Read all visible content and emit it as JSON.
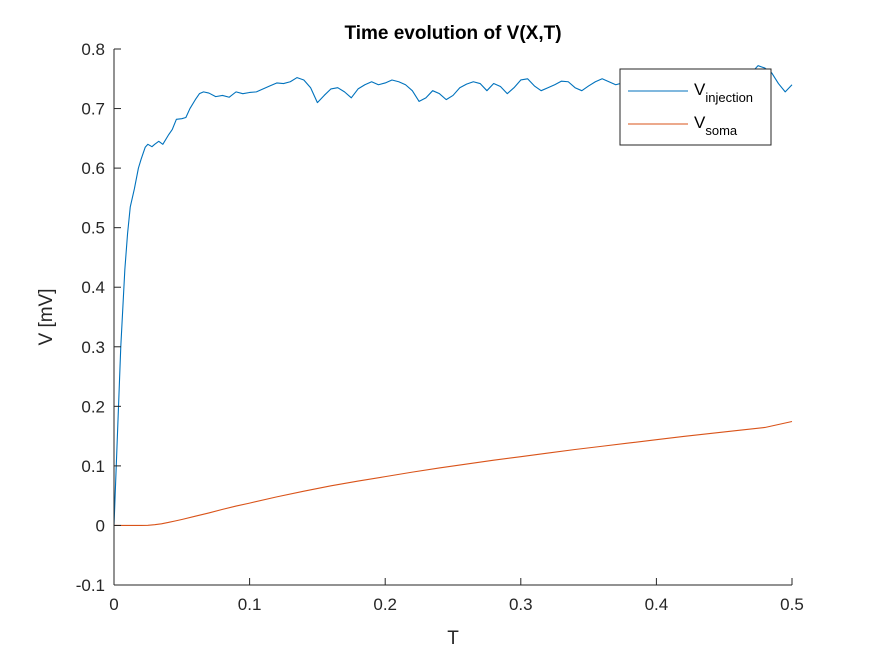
{
  "chart_data": {
    "type": "line",
    "title": "Time evolution of V(X,T)",
    "xlabel": "T",
    "ylabel": "V [mV]",
    "xlim": [
      0,
      0.5
    ],
    "ylim": [
      -0.1,
      0.8
    ],
    "xticks": [
      "0",
      "0.1",
      "0.2",
      "0.3",
      "0.4",
      "0.5"
    ],
    "yticks": [
      "-0.1",
      "0",
      "0.1",
      "0.2",
      "0.3",
      "0.4",
      "0.5",
      "0.6",
      "0.7",
      "0.8"
    ],
    "grid": false,
    "legend_position": "top-right",
    "series": [
      {
        "name": "V",
        "subscript": "injection",
        "color": "#0072BD",
        "x": [
          0,
          0.002,
          0.005,
          0.008,
          0.01,
          0.012,
          0.015,
          0.018,
          0.02,
          0.023,
          0.025,
          0.028,
          0.03,
          0.033,
          0.036,
          0.04,
          0.043,
          0.046,
          0.05,
          0.053,
          0.056,
          0.06,
          0.063,
          0.066,
          0.07,
          0.075,
          0.08,
          0.085,
          0.09,
          0.095,
          0.1,
          0.105,
          0.11,
          0.115,
          0.12,
          0.125,
          0.13,
          0.135,
          0.14,
          0.145,
          0.15,
          0.155,
          0.16,
          0.165,
          0.17,
          0.175,
          0.18,
          0.185,
          0.19,
          0.195,
          0.2,
          0.205,
          0.21,
          0.215,
          0.22,
          0.225,
          0.23,
          0.235,
          0.24,
          0.245,
          0.25,
          0.255,
          0.26,
          0.265,
          0.27,
          0.275,
          0.28,
          0.285,
          0.29,
          0.295,
          0.3,
          0.305,
          0.31,
          0.315,
          0.32,
          0.325,
          0.33,
          0.335,
          0.34,
          0.345,
          0.35,
          0.355,
          0.36,
          0.365,
          0.37,
          0.375,
          0.38,
          0.385,
          0.39,
          0.395,
          0.4,
          0.405,
          0.41,
          0.415,
          0.42,
          0.425,
          0.43,
          0.435,
          0.44,
          0.445,
          0.45,
          0.455,
          0.46,
          0.465,
          0.47,
          0.475,
          0.48,
          0.485,
          0.49,
          0.495,
          0.5
        ],
        "y": [
          0,
          0.12,
          0.3,
          0.43,
          0.49,
          0.535,
          0.565,
          0.6,
          0.615,
          0.635,
          0.64,
          0.636,
          0.64,
          0.645,
          0.64,
          0.655,
          0.665,
          0.682,
          0.683,
          0.685,
          0.7,
          0.715,
          0.725,
          0.728,
          0.726,
          0.72,
          0.722,
          0.719,
          0.728,
          0.725,
          0.727,
          0.728,
          0.733,
          0.738,
          0.743,
          0.742,
          0.745,
          0.752,
          0.748,
          0.735,
          0.71,
          0.722,
          0.733,
          0.735,
          0.728,
          0.718,
          0.733,
          0.74,
          0.745,
          0.74,
          0.743,
          0.748,
          0.745,
          0.74,
          0.73,
          0.712,
          0.718,
          0.73,
          0.725,
          0.715,
          0.722,
          0.735,
          0.741,
          0.745,
          0.742,
          0.73,
          0.742,
          0.737,
          0.725,
          0.735,
          0.748,
          0.75,
          0.738,
          0.73,
          0.735,
          0.74,
          0.746,
          0.745,
          0.735,
          0.73,
          0.738,
          0.745,
          0.75,
          0.745,
          0.74,
          0.743,
          0.748,
          0.752,
          0.745,
          0.738,
          0.744,
          0.748,
          0.742,
          0.735,
          0.745,
          0.755,
          0.75,
          0.746,
          0.742,
          0.745,
          0.748,
          0.752,
          0.745,
          0.742,
          0.76,
          0.772,
          0.768,
          0.76,
          0.742,
          0.728,
          0.74
        ]
      },
      {
        "name": "V",
        "subscript": "soma",
        "color": "#D95319",
        "x": [
          0,
          0.01,
          0.02,
          0.025,
          0.03,
          0.035,
          0.04,
          0.045,
          0.05,
          0.06,
          0.07,
          0.08,
          0.09,
          0.1,
          0.12,
          0.14,
          0.16,
          0.18,
          0.2,
          0.22,
          0.24,
          0.26,
          0.28,
          0.3,
          0.32,
          0.34,
          0.36,
          0.38,
          0.4,
          0.42,
          0.44,
          0.46,
          0.48,
          0.5
        ],
        "y": [
          0,
          0,
          0,
          0.0003,
          0.0012,
          0.0028,
          0.005,
          0.0075,
          0.01,
          0.0155,
          0.021,
          0.027,
          0.0325,
          0.0375,
          0.048,
          0.0575,
          0.0665,
          0.0745,
          0.082,
          0.0895,
          0.0965,
          0.103,
          0.1095,
          0.1155,
          0.1215,
          0.1275,
          0.133,
          0.1385,
          0.144,
          0.1495,
          0.1545,
          0.1595,
          0.1645,
          0.1745
        ]
      }
    ]
  }
}
